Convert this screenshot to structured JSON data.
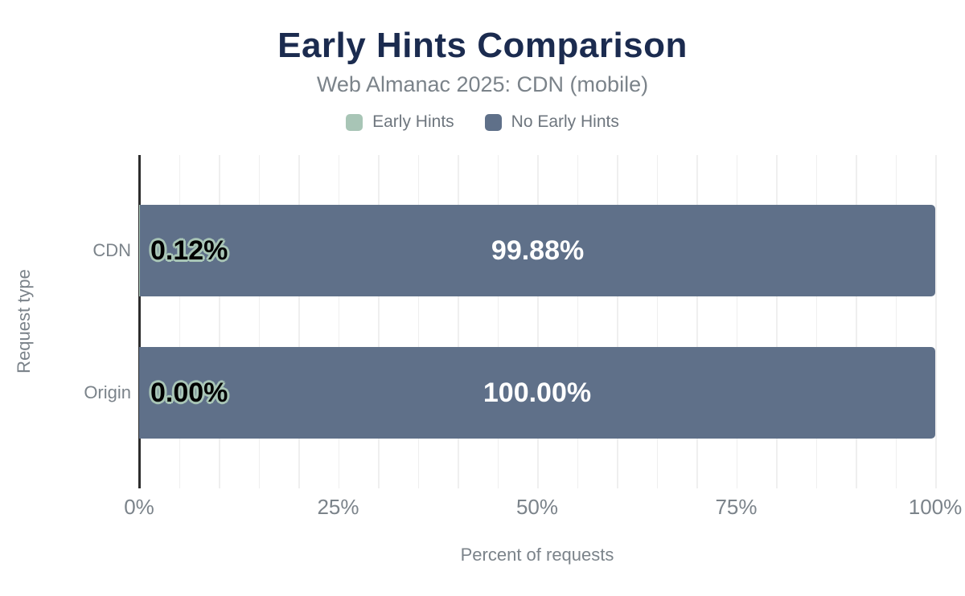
{
  "title": "Early Hints Comparison",
  "subtitle": "Web Almanac 2025: CDN (mobile)",
  "colors": {
    "title_text": "#1b2b4f",
    "muted_text": "#7b838a",
    "early_hints": "#a8c5b6",
    "no_early_hints": "#5f7089",
    "gridline": "#efefef",
    "axis_line": "#2d2d2d",
    "background": "#ffffff",
    "label_on_bar": "#ffffff",
    "label_outlined_text": "#000000"
  },
  "legend": {
    "items": [
      {
        "label": "Early Hints",
        "color": "#a8c5b6"
      },
      {
        "label": "No Early Hints",
        "color": "#5f7089"
      }
    ]
  },
  "axes": {
    "x_title": "Percent of requests",
    "y_title": "Request type"
  },
  "chart_data": {
    "type": "bar",
    "orientation": "horizontal",
    "stacked": true,
    "title": "Early Hints Comparison",
    "subtitle": "Web Almanac 2025: CDN (mobile)",
    "xlabel": "Percent of requests",
    "ylabel": "Request type",
    "categories": [
      "CDN",
      "Origin"
    ],
    "series": [
      {
        "name": "Early Hints",
        "color": "#a8c5b6",
        "values": [
          0.12,
          0.0
        ],
        "labels": [
          "0.12%",
          "0.00%"
        ]
      },
      {
        "name": "No Early Hints",
        "color": "#5f7089",
        "values": [
          99.88,
          100.0
        ],
        "labels": [
          "99.88%",
          "100.00%"
        ]
      }
    ],
    "xlim": [
      0,
      100
    ],
    "x_ticks": [
      {
        "value": 0,
        "label": "0%"
      },
      {
        "value": 25,
        "label": "25%"
      },
      {
        "value": 50,
        "label": "50%"
      },
      {
        "value": 75,
        "label": "75%"
      },
      {
        "value": 100,
        "label": "100%"
      }
    ],
    "minor_grid_step": 5,
    "grid": true,
    "legend_position": "top"
  }
}
